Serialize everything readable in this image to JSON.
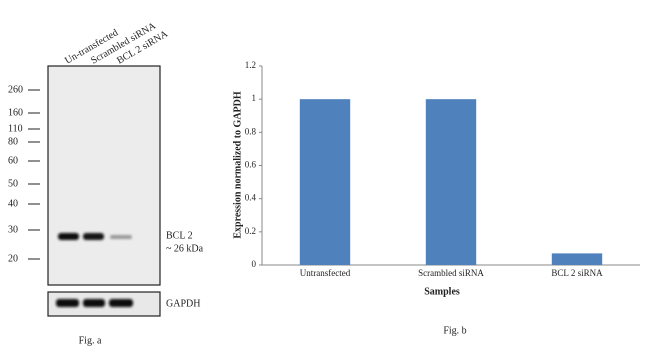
{
  "blot": {
    "lanes": [
      "Un-transfected",
      "Scrambled  siRNA",
      "BCL 2 siRNA"
    ],
    "markers": [
      260,
      160,
      110,
      80,
      60,
      50,
      40,
      30,
      20
    ],
    "band_label": "BCL 2",
    "band_size": "~ 26 kDa",
    "loading_label": "GAPDH",
    "caption": "Fig. a"
  },
  "chart_data": {
    "type": "bar",
    "categories": [
      "Untransfected",
      "Scrambled siRNA",
      "BCL 2 siRNA"
    ],
    "values": [
      1,
      1,
      0.07
    ],
    "color": "#4f81bd",
    "ylim": [
      0,
      1.2
    ],
    "yticks": [
      0,
      0.2,
      0.4,
      0.6,
      0.8,
      1,
      1.2
    ],
    "xlabel": "Samples",
    "ylabel": "Expression normalized to GAPDH",
    "caption": "Fig. b"
  }
}
